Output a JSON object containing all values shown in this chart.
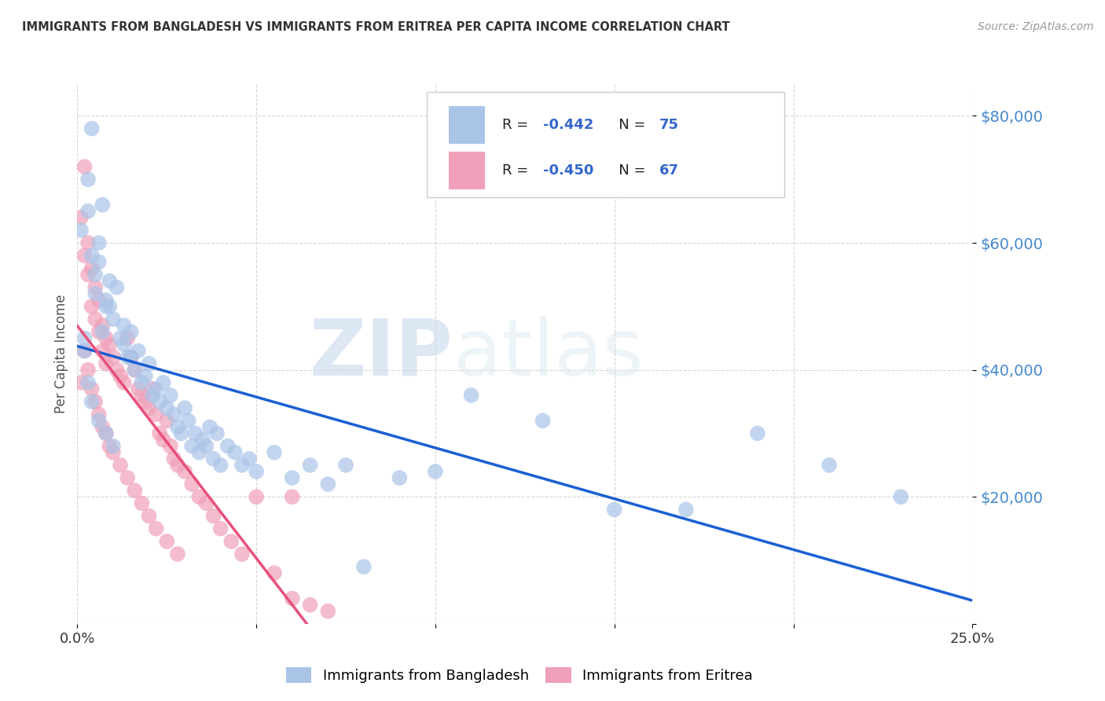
{
  "title": "IMMIGRANTS FROM BANGLADESH VS IMMIGRANTS FROM ERITREA PER CAPITA INCOME CORRELATION CHART",
  "source": "Source: ZipAtlas.com",
  "ylabel": "Per Capita Income",
  "ytick_labels": [
    "",
    "$20,000",
    "$40,000",
    "$60,000",
    "$80,000"
  ],
  "ytick_values": [
    0,
    20000,
    40000,
    60000,
    80000
  ],
  "bangladesh_color": "#aac4e8",
  "eritrea_color": "#f0a0b8",
  "bangladesh_line_color": "#1a5fd4",
  "eritrea_line_color": "#e8507a",
  "R_bangladesh": -0.442,
  "N_bangladesh": 75,
  "R_eritrea": -0.45,
  "N_eritrea": 67,
  "legend_labels": [
    "Immigrants from Bangladesh",
    "Immigrants from Eritrea"
  ],
  "watermark_zip": "ZIP",
  "watermark_atlas": "atlas",
  "background_color": "#ffffff",
  "xlim": [
    0,
    0.25
  ],
  "ylim": [
    0,
    85000
  ],
  "title_color": "#333333",
  "source_color": "#999999",
  "ytick_color": "#4488cc",
  "xtick_color": "#333333",
  "ylabel_color": "#555555",
  "grid_color": "#cccccc",
  "legend_R_color": "#3366cc",
  "legend_N_color": "#3366cc",
  "legend_label_color": "#333333",
  "bangladesh_x": [
    0.002,
    0.004,
    0.003,
    0.001,
    0.003,
    0.005,
    0.004,
    0.006,
    0.005,
    0.007,
    0.006,
    0.008,
    0.007,
    0.009,
    0.008,
    0.01,
    0.009,
    0.011,
    0.012,
    0.013,
    0.014,
    0.015,
    0.013,
    0.016,
    0.017,
    0.015,
    0.018,
    0.02,
    0.019,
    0.021,
    0.022,
    0.023,
    0.024,
    0.025,
    0.026,
    0.027,
    0.028,
    0.029,
    0.03,
    0.031,
    0.032,
    0.033,
    0.034,
    0.035,
    0.036,
    0.037,
    0.038,
    0.039,
    0.04,
    0.042,
    0.044,
    0.046,
    0.048,
    0.05,
    0.055,
    0.06,
    0.065,
    0.07,
    0.075,
    0.08,
    0.09,
    0.1,
    0.11,
    0.13,
    0.15,
    0.17,
    0.19,
    0.21,
    0.23,
    0.002,
    0.003,
    0.004,
    0.006,
    0.008,
    0.01
  ],
  "bangladesh_y": [
    45000,
    78000,
    65000,
    62000,
    70000,
    55000,
    58000,
    60000,
    52000,
    66000,
    57000,
    50000,
    46000,
    54000,
    51000,
    48000,
    50000,
    53000,
    45000,
    47000,
    42000,
    46000,
    44000,
    40000,
    43000,
    42000,
    38000,
    41000,
    39000,
    36000,
    37000,
    35000,
    38000,
    34000,
    36000,
    33000,
    31000,
    30000,
    34000,
    32000,
    28000,
    30000,
    27000,
    29000,
    28000,
    31000,
    26000,
    30000,
    25000,
    28000,
    27000,
    25000,
    26000,
    24000,
    27000,
    23000,
    25000,
    22000,
    25000,
    9000,
    23000,
    24000,
    36000,
    32000,
    18000,
    18000,
    30000,
    25000,
    20000,
    43000,
    38000,
    35000,
    32000,
    30000,
    28000
  ],
  "eritrea_x": [
    0.001,
    0.002,
    0.001,
    0.003,
    0.002,
    0.004,
    0.003,
    0.005,
    0.004,
    0.006,
    0.005,
    0.007,
    0.006,
    0.008,
    0.007,
    0.009,
    0.008,
    0.01,
    0.011,
    0.012,
    0.013,
    0.014,
    0.015,
    0.016,
    0.017,
    0.018,
    0.019,
    0.02,
    0.021,
    0.022,
    0.023,
    0.024,
    0.025,
    0.026,
    0.027,
    0.028,
    0.03,
    0.032,
    0.034,
    0.036,
    0.038,
    0.04,
    0.043,
    0.046,
    0.05,
    0.055,
    0.06,
    0.065,
    0.07,
    0.002,
    0.003,
    0.004,
    0.005,
    0.006,
    0.007,
    0.008,
    0.009,
    0.01,
    0.012,
    0.014,
    0.016,
    0.018,
    0.02,
    0.022,
    0.025,
    0.028,
    0.06
  ],
  "eritrea_y": [
    38000,
    72000,
    64000,
    60000,
    58000,
    56000,
    55000,
    53000,
    50000,
    51000,
    48000,
    47000,
    46000,
    45000,
    43000,
    44000,
    41000,
    42000,
    40000,
    39000,
    38000,
    45000,
    42000,
    40000,
    37000,
    36000,
    35000,
    34000,
    37000,
    33000,
    30000,
    29000,
    32000,
    28000,
    26000,
    25000,
    24000,
    22000,
    20000,
    19000,
    17000,
    15000,
    13000,
    11000,
    20000,
    8000,
    4000,
    3000,
    2000,
    43000,
    40000,
    37000,
    35000,
    33000,
    31000,
    30000,
    28000,
    27000,
    25000,
    23000,
    21000,
    19000,
    17000,
    15000,
    13000,
    11000,
    20000
  ]
}
